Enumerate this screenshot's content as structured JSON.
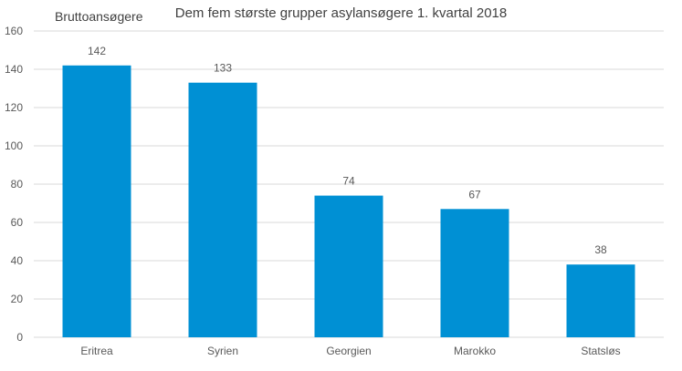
{
  "chart_data": {
    "type": "bar",
    "title": "Dem fem største  grupper asylansøgere  1. kvartal 2018",
    "ylabel": "Bruttoansøgere",
    "xlabel": "",
    "categories": [
      "Eritrea",
      "Syrien",
      "Georgien",
      "Marokko",
      "Statsløs"
    ],
    "values": [
      142,
      133,
      74,
      67,
      38
    ],
    "data_labels": [
      "142",
      "133",
      "74",
      "67",
      "38"
    ],
    "yticks": [
      0,
      20,
      40,
      60,
      80,
      100,
      120,
      140,
      160
    ],
    "ylim": [
      0,
      160
    ],
    "grid": true,
    "legend": "none",
    "bar_color": "#0090d4",
    "grid_color": "#d9d9d9",
    "text_color": "#595959"
  }
}
